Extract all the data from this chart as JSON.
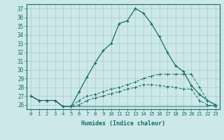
{
  "xlabel": "Humidex (Indice chaleur)",
  "background_color": "#cce8e8",
  "line_color": "#1a6b6b",
  "grid_color": "#aacaca",
  "xlim": [
    -0.5,
    23.5
  ],
  "ylim": [
    25.5,
    37.5
  ],
  "yticks": [
    26,
    27,
    28,
    29,
    30,
    31,
    32,
    33,
    34,
    35,
    36,
    37
  ],
  "xticks": [
    0,
    1,
    2,
    3,
    4,
    5,
    6,
    7,
    8,
    9,
    10,
    11,
    12,
    13,
    14,
    15,
    16,
    17,
    18,
    19,
    20,
    21,
    22,
    23
  ],
  "series1": [
    27.0,
    26.5,
    26.5,
    26.5,
    25.8,
    25.8,
    27.5,
    29.2,
    30.8,
    32.2,
    33.0,
    35.3,
    35.6,
    37.0,
    36.5,
    35.3,
    33.8,
    32.0,
    30.5,
    29.8,
    28.2,
    27.2,
    26.5,
    26.0
  ],
  "series2": [
    27.0,
    26.5,
    26.5,
    26.5,
    25.8,
    25.8,
    26.5,
    27.0,
    27.2,
    27.5,
    27.8,
    28.0,
    28.3,
    28.6,
    29.0,
    29.3,
    29.5,
    29.5,
    29.5,
    29.5,
    29.5,
    28.0,
    26.5,
    26.0
  ],
  "series3": [
    27.0,
    26.5,
    26.5,
    26.5,
    25.8,
    25.8,
    26.0,
    26.5,
    26.8,
    27.0,
    27.3,
    27.5,
    27.8,
    28.0,
    28.3,
    28.3,
    28.2,
    28.1,
    28.0,
    27.8,
    27.8,
    26.5,
    26.0,
    25.8
  ],
  "series4": [
    27.0,
    26.5,
    26.5,
    26.5,
    25.8,
    25.8,
    25.8,
    25.8,
    25.8,
    25.8,
    25.8,
    25.8,
    25.8,
    25.8,
    25.8,
    25.8,
    25.8,
    25.8,
    25.8,
    25.8,
    25.8,
    25.8,
    25.8,
    26.0
  ]
}
